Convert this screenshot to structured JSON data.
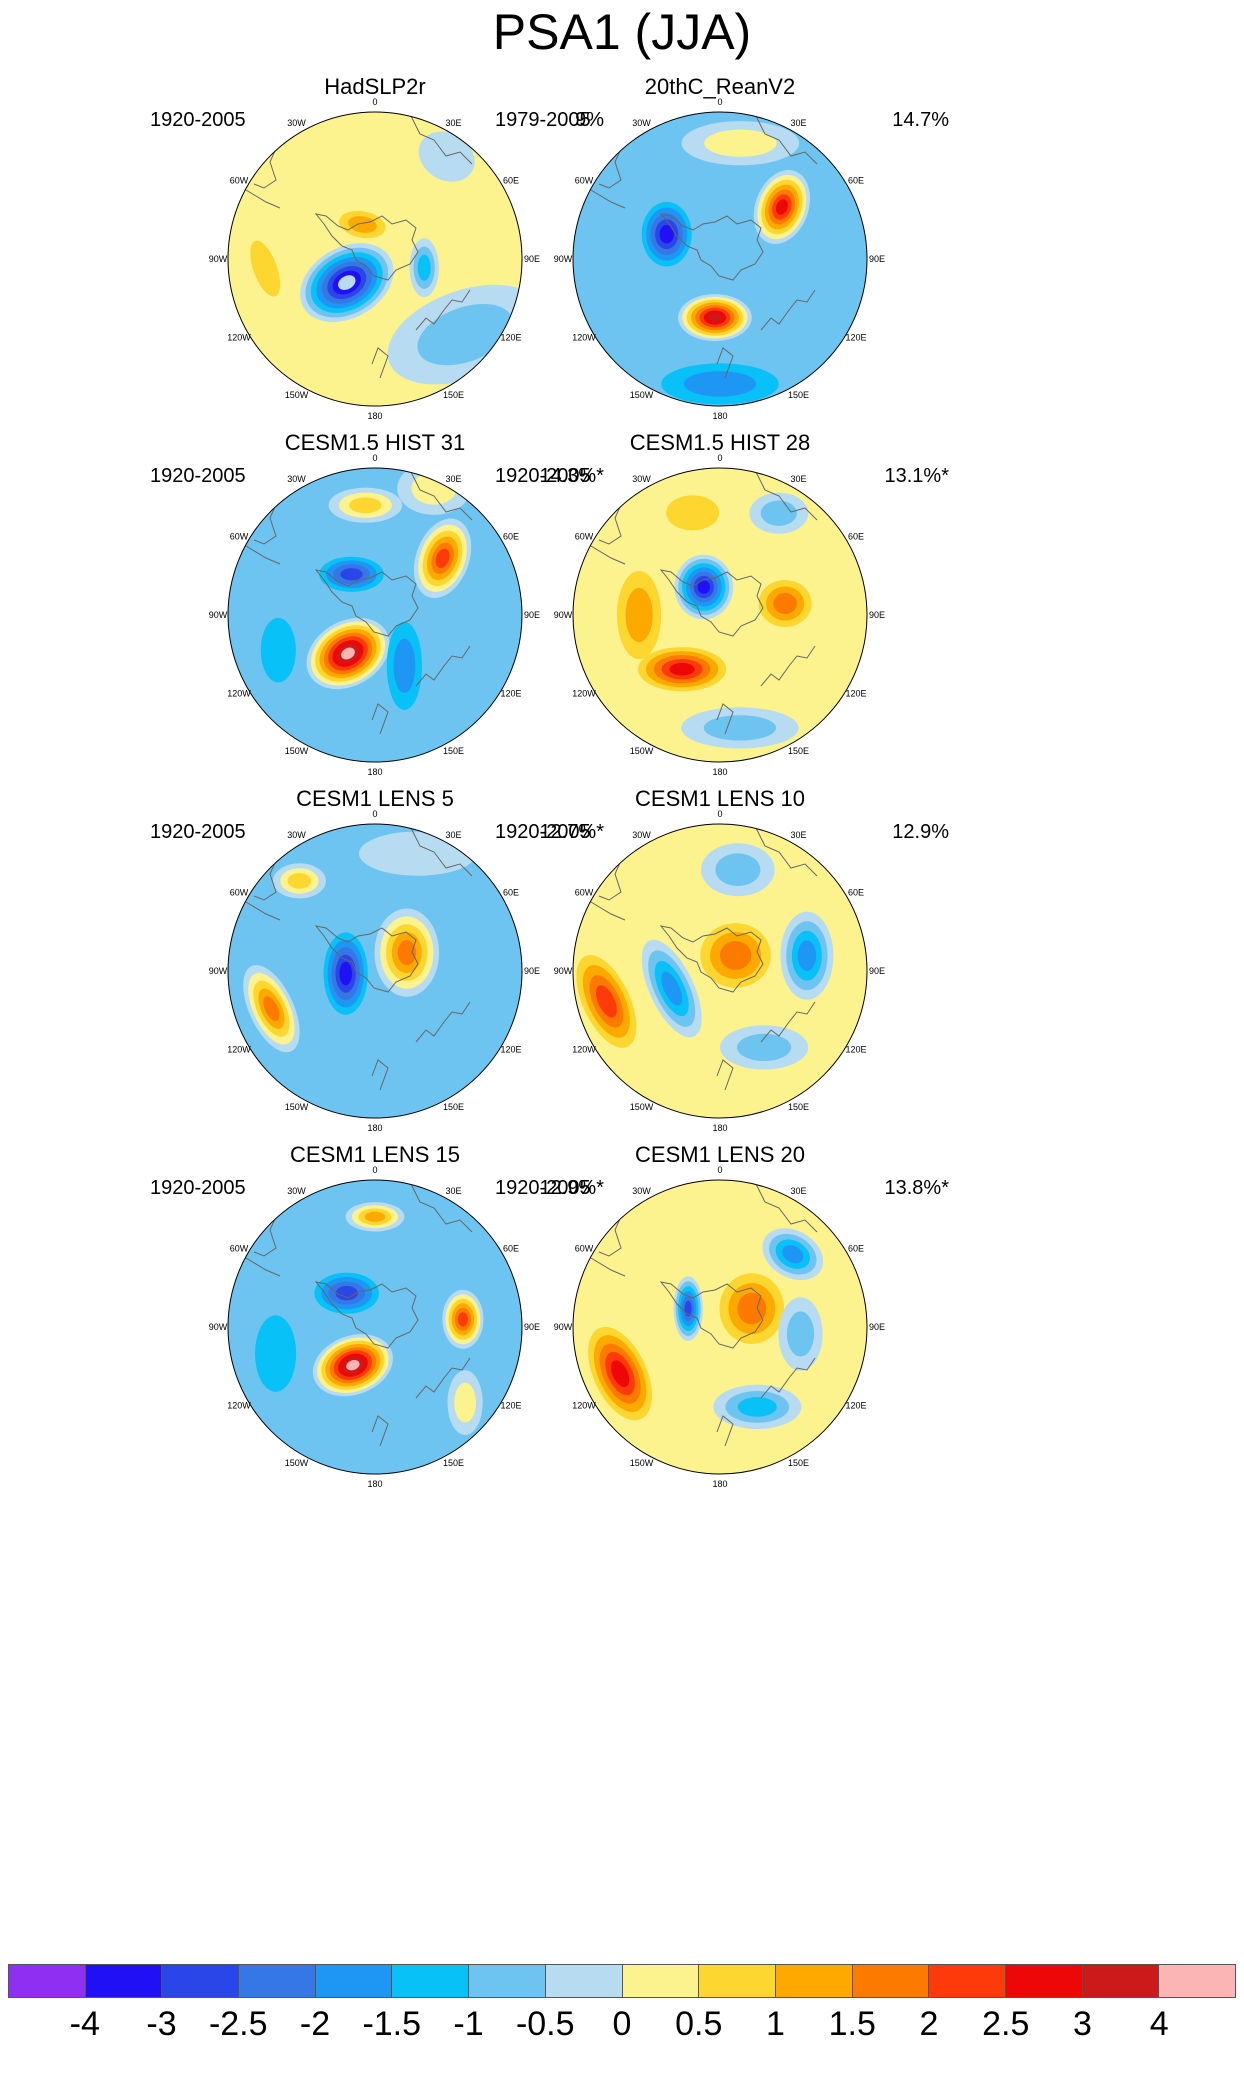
{
  "title": "PSA1 (JJA)",
  "lon_labels": [
    "0",
    "30E",
    "60E",
    "90E",
    "120E",
    "150E",
    "180",
    "150W",
    "120W",
    "90W",
    "60W",
    "30W"
  ],
  "palette": {
    "-4": "#8f2ff2",
    "-3": "#1f10f5",
    "-2.5": "#2a45e8",
    "-2": "#3677e6",
    "-1.5": "#1e96f4",
    "-1": "#07c1f7",
    "-0.5": "#6ec4f0",
    "0": "#b7dcf2",
    "0.5": "#fcf38f",
    "1": "#fdd630",
    "1.5": "#fda900",
    "2": "#fd7a00",
    "2.5": "#fd3a0a",
    "3": "#ee0707",
    "3.5": "#cc1a1a",
    "4": "#fcb5b5"
  },
  "colorbar": {
    "colors": [
      "#8f2ff2",
      "#1f10f5",
      "#2a45e8",
      "#3677e6",
      "#1e96f4",
      "#07c1f7",
      "#6ec4f0",
      "#b7dcf2",
      "#fcf38f",
      "#fdd630",
      "#fda900",
      "#fd7a00",
      "#fd3a0a",
      "#ee0707",
      "#cc1a1a",
      "#fcb5b5"
    ],
    "labels": [
      "-4",
      "-3",
      "-2.5",
      "-2",
      "-1.5",
      "-1",
      "-0.5",
      "0",
      "0.5",
      "1",
      "1.5",
      "2",
      "2.5",
      "3",
      "4"
    ]
  },
  "panels": [
    {
      "title": "HadSLP2r",
      "period": "1920-2005",
      "percent": "9%",
      "background": 0.5,
      "features": [
        {
          "lon": 230,
          "r": 0.25,
          "value": -3.5,
          "ax": 0.34,
          "ay": 0.24,
          "angle": -30
        },
        {
          "lon": 100,
          "r": 0.34,
          "value": -1,
          "ax": 0.1,
          "ay": 0.2,
          "angle": 0
        },
        {
          "lon": 35,
          "r": 0.85,
          "value": 0,
          "ax": 0.2,
          "ay": 0.16,
          "angle": 30
        },
        {
          "lon": 130,
          "r": 0.8,
          "value": -0.5,
          "ax": 0.55,
          "ay": 0.3,
          "angle": -20
        },
        {
          "lon": 340,
          "r": 0.25,
          "value": 1.5,
          "ax": 0.16,
          "ay": 0.09,
          "angle": 10
        },
        {
          "lon": 265,
          "r": 0.75,
          "value": 1,
          "ax": 0.08,
          "ay": 0.2,
          "angle": -20
        }
      ]
    },
    {
      "title": "20thC_ReanV2",
      "period": "1979-2005",
      "percent": "14.7%",
      "background": -0.5,
      "features": [
        {
          "lon": 185,
          "r": 0.4,
          "value": 3.5,
          "ax": 0.25,
          "ay": 0.16,
          "angle": 0
        },
        {
          "lon": 295,
          "r": 0.4,
          "value": -3,
          "ax": 0.17,
          "ay": 0.22,
          "angle": 0
        },
        {
          "lon": 50,
          "r": 0.55,
          "value": 3,
          "ax": 0.18,
          "ay": 0.26,
          "angle": 20
        },
        {
          "lon": 180,
          "r": 0.85,
          "value": -1.5,
          "ax": 0.4,
          "ay": 0.14,
          "angle": 0
        },
        {
          "lon": 10,
          "r": 0.8,
          "value": 0.5,
          "ax": 0.4,
          "ay": 0.15,
          "angle": 0
        }
      ]
    },
    {
      "title": "CESM1.5 HIST 31",
      "period": "1920-2005",
      "percent": "14.3%*",
      "background": -0.5,
      "features": [
        {
          "lon": 215,
          "r": 0.32,
          "value": 4,
          "ax": 0.3,
          "ay": 0.22,
          "angle": -30
        },
        {
          "lon": 330,
          "r": 0.32,
          "value": -2.5,
          "ax": 0.22,
          "ay": 0.12,
          "angle": 0
        },
        {
          "lon": 50,
          "r": 0.6,
          "value": 2.5,
          "ax": 0.18,
          "ay": 0.28,
          "angle": 20
        },
        {
          "lon": 355,
          "r": 0.75,
          "value": 1,
          "ax": 0.25,
          "ay": 0.12,
          "angle": 0
        },
        {
          "lon": 250,
          "r": 0.7,
          "value": -1,
          "ax": 0.12,
          "ay": 0.22,
          "angle": 0
        },
        {
          "lon": 150,
          "r": 0.4,
          "value": -1.5,
          "ax": 0.12,
          "ay": 0.3,
          "angle": 0
        },
        {
          "lon": 25,
          "r": 0.95,
          "value": 0.5,
          "ax": 0.25,
          "ay": 0.18,
          "angle": 0
        }
      ]
    },
    {
      "title": "CESM1.5 HIST 28",
      "period": "1920-2005",
      "percent": "13.1%*",
      "background": 0.5,
      "features": [
        {
          "lon": 330,
          "r": 0.22,
          "value": -3,
          "ax": 0.2,
          "ay": 0.22,
          "angle": 0
        },
        {
          "lon": 215,
          "r": 0.45,
          "value": 3,
          "ax": 0.3,
          "ay": 0.15,
          "angle": 0
        },
        {
          "lon": 80,
          "r": 0.45,
          "value": 2,
          "ax": 0.18,
          "ay": 0.16,
          "angle": 0
        },
        {
          "lon": 270,
          "r": 0.55,
          "value": 1.5,
          "ax": 0.15,
          "ay": 0.3,
          "angle": 0
        },
        {
          "lon": 170,
          "r": 0.78,
          "value": -0.5,
          "ax": 0.4,
          "ay": 0.14,
          "angle": 0
        },
        {
          "lon": 345,
          "r": 0.72,
          "value": 1,
          "ax": 0.18,
          "ay": 0.12,
          "angle": 0
        },
        {
          "lon": 30,
          "r": 0.8,
          "value": -0.5,
          "ax": 0.2,
          "ay": 0.14,
          "angle": 0
        }
      ]
    },
    {
      "title": "CESM1 LENS 5",
      "period": "1920-2005",
      "percent": "12.7%*",
      "background": -0.5,
      "features": [
        {
          "lon": 265,
          "r": 0.2,
          "value": -3,
          "ax": 0.15,
          "ay": 0.28,
          "angle": 0
        },
        {
          "lon": 60,
          "r": 0.25,
          "value": 2,
          "ax": 0.22,
          "ay": 0.3,
          "angle": 0
        },
        {
          "lon": 250,
          "r": 0.75,
          "value": 2,
          "ax": 0.15,
          "ay": 0.32,
          "angle": -25
        },
        {
          "lon": 320,
          "r": 0.8,
          "value": 1,
          "ax": 0.18,
          "ay": 0.12,
          "angle": 0
        },
        {
          "lon": 20,
          "r": 0.85,
          "value": 0,
          "ax": 0.4,
          "ay": 0.15,
          "angle": 0
        }
      ]
    },
    {
      "title": "CESM1 LENS 10",
      "period": "1920-2005",
      "percent": "12.9%",
      "background": 0.5,
      "features": [
        {
          "lon": 250,
          "r": 0.35,
          "value": -1.5,
          "ax": 0.15,
          "ay": 0.36,
          "angle": -25
        },
        {
          "lon": 45,
          "r": 0.15,
          "value": 2,
          "ax": 0.24,
          "ay": 0.22,
          "angle": 0
        },
        {
          "lon": 255,
          "r": 0.8,
          "value": 2.5,
          "ax": 0.16,
          "ay": 0.34,
          "angle": -25
        },
        {
          "lon": 80,
          "r": 0.6,
          "value": -1.5,
          "ax": 0.18,
          "ay": 0.3,
          "angle": 0
        },
        {
          "lon": 10,
          "r": 0.7,
          "value": -0.5,
          "ax": 0.25,
          "ay": 0.18,
          "angle": 0
        },
        {
          "lon": 150,
          "r": 0.6,
          "value": -0.5,
          "ax": 0.3,
          "ay": 0.15,
          "angle": 0
        }
      ]
    },
    {
      "title": "CESM1 LENS 15",
      "period": "1920-2005",
      "percent": "12.9%*",
      "background": -0.5,
      "features": [
        {
          "lon": 210,
          "r": 0.3,
          "value": 4,
          "ax": 0.28,
          "ay": 0.2,
          "angle": -20
        },
        {
          "lon": 320,
          "r": 0.3,
          "value": -2.5,
          "ax": 0.22,
          "ay": 0.14,
          "angle": 0
        },
        {
          "lon": 85,
          "r": 0.6,
          "value": 2.5,
          "ax": 0.14,
          "ay": 0.2,
          "angle": 0
        },
        {
          "lon": 0,
          "r": 0.75,
          "value": 1.5,
          "ax": 0.2,
          "ay": 0.1,
          "angle": 0
        },
        {
          "lon": 255,
          "r": 0.7,
          "value": -1,
          "ax": 0.14,
          "ay": 0.26,
          "angle": 0
        },
        {
          "lon": 130,
          "r": 0.8,
          "value": 0.5,
          "ax": 0.12,
          "ay": 0.22,
          "angle": 0
        }
      ]
    },
    {
      "title": "CESM1 LENS 20",
      "period": "1920-2005",
      "percent": "13.8%*",
      "background": 0.5,
      "features": [
        {
          "lon": 300,
          "r": 0.25,
          "value": -2.5,
          "ax": 0.1,
          "ay": 0.22,
          "angle": 0
        },
        {
          "lon": 60,
          "r": 0.25,
          "value": 2,
          "ax": 0.22,
          "ay": 0.24,
          "angle": 0
        },
        {
          "lon": 245,
          "r": 0.75,
          "value": 3,
          "ax": 0.18,
          "ay": 0.34,
          "angle": -25
        },
        {
          "lon": 45,
          "r": 0.7,
          "value": -1.5,
          "ax": 0.22,
          "ay": 0.16,
          "angle": 30
        },
        {
          "lon": 155,
          "r": 0.6,
          "value": -1,
          "ax": 0.3,
          "ay": 0.15,
          "angle": 0
        },
        {
          "lon": 95,
          "r": 0.55,
          "value": -0.5,
          "ax": 0.15,
          "ay": 0.25,
          "angle": 0
        }
      ]
    }
  ]
}
